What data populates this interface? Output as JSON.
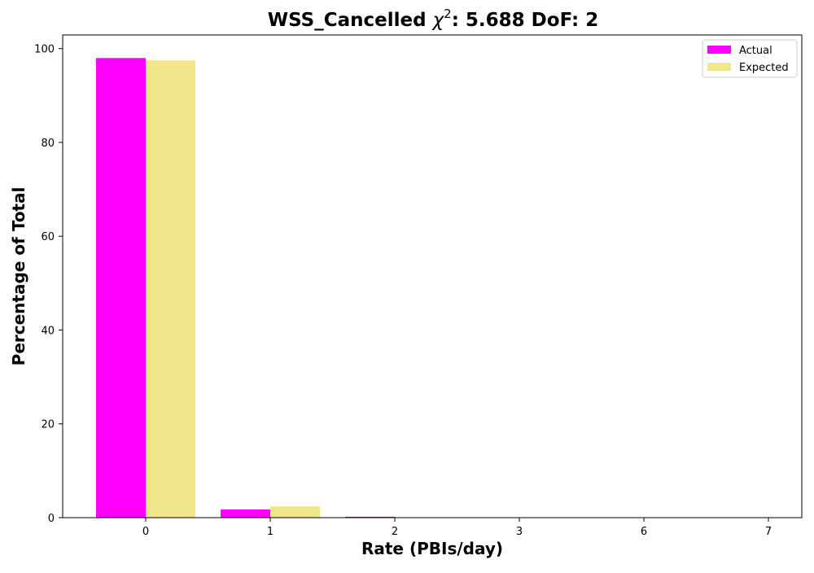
{
  "chart_data": {
    "type": "bar",
    "title_prefix": "WSS_Cancelled ",
    "title_chi_symbol": "χ",
    "title_chi_exponent": "2",
    "title_suffix": ": 5.688 DoF: 2",
    "xlabel": "Rate (PBIs/day)",
    "ylabel": "Percentage of Total",
    "categories": [
      "0",
      "1",
      "2",
      "3",
      "6",
      "7"
    ],
    "series": [
      {
        "name": "Actual",
        "color": "#ff00ff",
        "values": [
          98.0,
          1.75,
          0.2,
          0.02,
          0.01,
          0.01
        ]
      },
      {
        "name": "Expected",
        "color": "#f0e68c",
        "values": [
          97.5,
          2.4,
          0.03,
          0.0,
          0.0,
          0.0
        ]
      }
    ],
    "ylim": [
      0,
      102.9
    ],
    "yticks": [
      0,
      20,
      40,
      60,
      80,
      100
    ],
    "grid": false,
    "legend_position": "top-right"
  }
}
